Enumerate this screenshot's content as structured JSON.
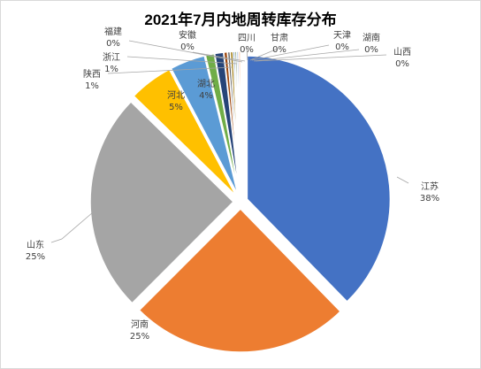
{
  "chart_data": {
    "type": "pie",
    "title": "2021年7月内地周转库存分布",
    "slices": [
      {
        "label": "江苏",
        "value": 38,
        "display": "38%",
        "color": "#4472C4"
      },
      {
        "label": "河南",
        "value": 25,
        "display": "25%",
        "color": "#ED7D31"
      },
      {
        "label": "山东",
        "value": 25,
        "display": "25%",
        "color": "#A5A5A5"
      },
      {
        "label": "河北",
        "value": 5,
        "display": "5%",
        "color": "#FFC000"
      },
      {
        "label": "湖北",
        "value": 4,
        "display": "4%",
        "color": "#5B9BD5"
      },
      {
        "label": "陕西",
        "value": 1,
        "display": "1%",
        "color": "#70AD47"
      },
      {
        "label": "浙江",
        "value": 1,
        "display": "1%",
        "color": "#264478"
      },
      {
        "label": "福建",
        "value": 0.4,
        "display": "0%",
        "color": "#9E480E"
      },
      {
        "label": "安徽",
        "value": 0.3,
        "display": "0%",
        "color": "#636363"
      },
      {
        "label": "四川",
        "value": 0.3,
        "display": "0%",
        "color": "#997300"
      },
      {
        "label": "甘肃",
        "value": 0.2,
        "display": "0%",
        "color": "#255E91"
      },
      {
        "label": "天津",
        "value": 0.2,
        "display": "0%",
        "color": "#43682B"
      },
      {
        "label": "湖南",
        "value": 0.2,
        "display": "0%",
        "color": "#698ED0"
      },
      {
        "label": "山西",
        "value": 0.2,
        "display": "0%",
        "color": "#F1975A"
      }
    ],
    "legend": "none"
  }
}
